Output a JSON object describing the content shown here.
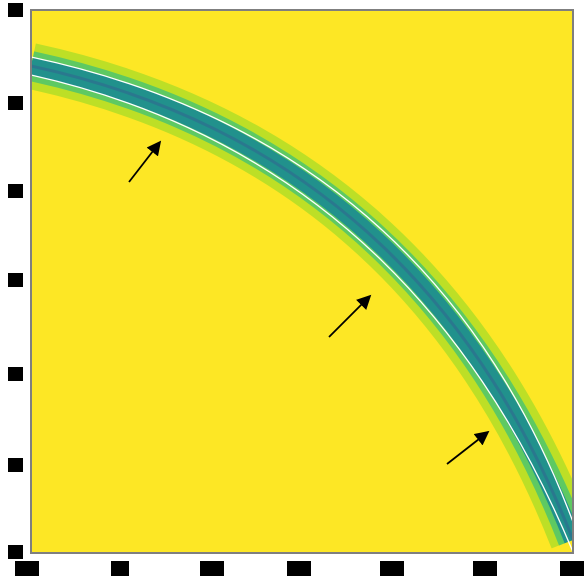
{
  "figure": {
    "background_color": "#fde725",
    "band_colors": [
      "#fde725",
      "#bddf26",
      "#5ec962",
      "#21918c",
      "#2a788e",
      "#3b528b"
    ],
    "contour_color": "#ffffff",
    "arrow_color": "#000000",
    "frame_color": "#7f7f7f",
    "tick_color": "#000000",
    "arrow_count": 3,
    "x_tick_count": 7,
    "y_tick_count": 7
  }
}
